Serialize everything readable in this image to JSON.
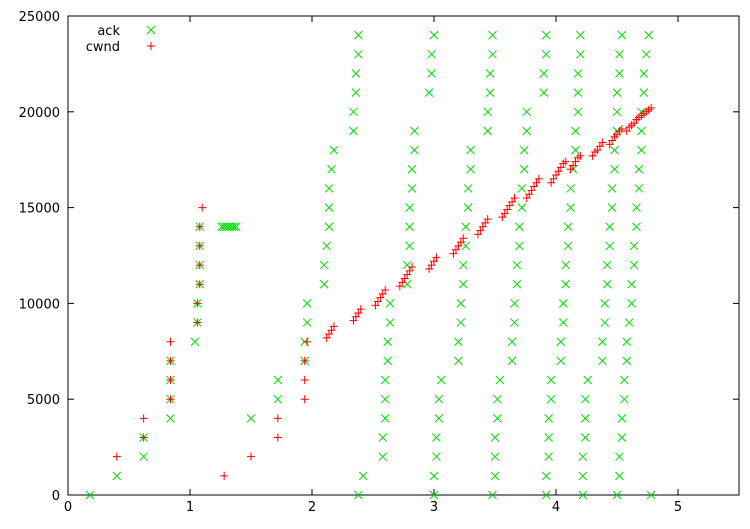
{
  "chart_data": {
    "type": "scatter",
    "title": "",
    "xlabel": "",
    "ylabel": "",
    "xlim": [
      0,
      5.5
    ],
    "ylim": [
      0,
      25000
    ],
    "x_ticks": [
      0,
      1,
      2,
      3,
      4,
      5
    ],
    "y_ticks": [
      0,
      5000,
      10000,
      15000,
      20000,
      25000
    ],
    "grid": false,
    "legend_position": "top-left",
    "series": [
      {
        "name": "ack",
        "marker": "x",
        "color": "#00dd00",
        "points": [
          [
            0.18,
            0
          ],
          [
            0.4,
            1000
          ],
          [
            0.62,
            2000
          ],
          [
            0.62,
            3000
          ],
          [
            0.84,
            4000
          ],
          [
            0.84,
            5000
          ],
          [
            0.84,
            6000
          ],
          [
            0.84,
            7000
          ],
          [
            1.04,
            8000
          ],
          [
            1.06,
            9000
          ],
          [
            1.06,
            10000
          ],
          [
            1.08,
            11000
          ],
          [
            1.08,
            12000
          ],
          [
            1.08,
            13000
          ],
          [
            1.08,
            14000
          ],
          [
            1.26,
            14000
          ],
          [
            1.28,
            14000
          ],
          [
            1.3,
            14000
          ],
          [
            1.32,
            14000
          ],
          [
            1.34,
            14000
          ],
          [
            1.36,
            14000
          ],
          [
            1.38,
            14000
          ],
          [
            1.5,
            4000
          ],
          [
            1.72,
            5000
          ],
          [
            1.72,
            6000
          ],
          [
            1.94,
            7000
          ],
          [
            1.94,
            8000
          ],
          [
            1.96,
            9000
          ],
          [
            1.96,
            10000
          ],
          [
            2.1,
            11000
          ],
          [
            2.1,
            12000
          ],
          [
            2.12,
            13000
          ],
          [
            2.14,
            14000
          ],
          [
            2.14,
            15000
          ],
          [
            2.14,
            16000
          ],
          [
            2.16,
            17000
          ],
          [
            2.18,
            18000
          ],
          [
            2.34,
            19000
          ],
          [
            2.34,
            20000
          ],
          [
            2.36,
            21000
          ],
          [
            2.36,
            22000
          ],
          [
            2.38,
            23000
          ],
          [
            2.38,
            24000
          ],
          [
            2.38,
            0
          ],
          [
            2.42,
            1000
          ],
          [
            2.58,
            2000
          ],
          [
            2.58,
            3000
          ],
          [
            2.6,
            4000
          ],
          [
            2.6,
            5000
          ],
          [
            2.6,
            6000
          ],
          [
            2.62,
            7000
          ],
          [
            2.62,
            8000
          ],
          [
            2.64,
            9000
          ],
          [
            2.64,
            10000
          ],
          [
            2.78,
            11000
          ],
          [
            2.78,
            12000
          ],
          [
            2.8,
            13000
          ],
          [
            2.8,
            14000
          ],
          [
            2.8,
            15000
          ],
          [
            2.82,
            16000
          ],
          [
            2.82,
            17000
          ],
          [
            2.84,
            18000
          ],
          [
            2.84,
            19000
          ],
          [
            2.96,
            21000
          ],
          [
            2.98,
            22000
          ],
          [
            2.98,
            23000
          ],
          [
            3.0,
            24000
          ],
          [
            3.0,
            0
          ],
          [
            3.0,
            1000
          ],
          [
            3.02,
            2000
          ],
          [
            3.02,
            3000
          ],
          [
            3.04,
            4000
          ],
          [
            3.04,
            5000
          ],
          [
            3.06,
            6000
          ],
          [
            3.2,
            7000
          ],
          [
            3.2,
            8000
          ],
          [
            3.22,
            9000
          ],
          [
            3.22,
            10000
          ],
          [
            3.24,
            11000
          ],
          [
            3.24,
            12000
          ],
          [
            3.26,
            13000
          ],
          [
            3.26,
            14000
          ],
          [
            3.28,
            15000
          ],
          [
            3.28,
            16000
          ],
          [
            3.3,
            17000
          ],
          [
            3.3,
            18000
          ],
          [
            3.44,
            19000
          ],
          [
            3.44,
            20000
          ],
          [
            3.46,
            21000
          ],
          [
            3.46,
            22000
          ],
          [
            3.48,
            23000
          ],
          [
            3.48,
            24000
          ],
          [
            3.48,
            0
          ],
          [
            3.5,
            1000
          ],
          [
            3.5,
            2000
          ],
          [
            3.5,
            3000
          ],
          [
            3.52,
            4000
          ],
          [
            3.52,
            5000
          ],
          [
            3.54,
            6000
          ],
          [
            3.64,
            7000
          ],
          [
            3.64,
            8000
          ],
          [
            3.66,
            9000
          ],
          [
            3.66,
            10000
          ],
          [
            3.68,
            11000
          ],
          [
            3.68,
            12000
          ],
          [
            3.7,
            13000
          ],
          [
            3.7,
            14000
          ],
          [
            3.72,
            15000
          ],
          [
            3.72,
            16000
          ],
          [
            3.74,
            17000
          ],
          [
            3.74,
            18000
          ],
          [
            3.76,
            19000
          ],
          [
            3.76,
            20000
          ],
          [
            3.9,
            21000
          ],
          [
            3.9,
            22000
          ],
          [
            3.92,
            23000
          ],
          [
            3.92,
            24000
          ],
          [
            3.92,
            0
          ],
          [
            3.92,
            1000
          ],
          [
            3.94,
            2000
          ],
          [
            3.94,
            3000
          ],
          [
            3.94,
            4000
          ],
          [
            3.96,
            5000
          ],
          [
            3.96,
            6000
          ],
          [
            4.04,
            7000
          ],
          [
            4.04,
            8000
          ],
          [
            4.06,
            9000
          ],
          [
            4.06,
            10000
          ],
          [
            4.08,
            11000
          ],
          [
            4.08,
            12000
          ],
          [
            4.1,
            13000
          ],
          [
            4.1,
            14000
          ],
          [
            4.12,
            15000
          ],
          [
            4.12,
            16000
          ],
          [
            4.14,
            17000
          ],
          [
            4.16,
            18000
          ],
          [
            4.16,
            19000
          ],
          [
            4.18,
            20000
          ],
          [
            4.18,
            21000
          ],
          [
            4.18,
            22000
          ],
          [
            4.2,
            23000
          ],
          [
            4.2,
            24000
          ],
          [
            4.22,
            0
          ],
          [
            4.22,
            1000
          ],
          [
            4.22,
            2000
          ],
          [
            4.24,
            3000
          ],
          [
            4.24,
            4000
          ],
          [
            4.24,
            5000
          ],
          [
            4.26,
            6000
          ],
          [
            4.38,
            7000
          ],
          [
            4.38,
            8000
          ],
          [
            4.4,
            9000
          ],
          [
            4.4,
            10000
          ],
          [
            4.42,
            11000
          ],
          [
            4.42,
            12000
          ],
          [
            4.44,
            13000
          ],
          [
            4.44,
            14000
          ],
          [
            4.46,
            15000
          ],
          [
            4.46,
            16000
          ],
          [
            4.48,
            17000
          ],
          [
            4.48,
            18000
          ],
          [
            4.5,
            19000
          ],
          [
            4.5,
            20000
          ],
          [
            4.5,
            21000
          ],
          [
            4.52,
            22000
          ],
          [
            4.52,
            23000
          ],
          [
            4.54,
            24000
          ],
          [
            4.5,
            0
          ],
          [
            4.52,
            1000
          ],
          [
            4.52,
            2000
          ],
          [
            4.54,
            3000
          ],
          [
            4.54,
            4000
          ],
          [
            4.56,
            5000
          ],
          [
            4.56,
            6000
          ],
          [
            4.58,
            7000
          ],
          [
            4.58,
            8000
          ],
          [
            4.6,
            9000
          ],
          [
            4.62,
            10000
          ],
          [
            4.62,
            11000
          ],
          [
            4.64,
            12000
          ],
          [
            4.64,
            13000
          ],
          [
            4.66,
            14000
          ],
          [
            4.66,
            15000
          ],
          [
            4.68,
            16000
          ],
          [
            4.68,
            17000
          ],
          [
            4.7,
            18000
          ],
          [
            4.7,
            19000
          ],
          [
            4.7,
            20000
          ],
          [
            4.72,
            21000
          ],
          [
            4.72,
            22000
          ],
          [
            4.74,
            23000
          ],
          [
            4.76,
            24000
          ],
          [
            4.78,
            0
          ]
        ]
      },
      {
        "name": "cwnd",
        "marker": "+",
        "color": "#ff0000",
        "points": [
          [
            0.4,
            2000
          ],
          [
            0.62,
            3000
          ],
          [
            0.62,
            4000
          ],
          [
            0.84,
            5000
          ],
          [
            0.84,
            6000
          ],
          [
            0.84,
            7000
          ],
          [
            0.84,
            8000
          ],
          [
            1.06,
            9000
          ],
          [
            1.06,
            10000
          ],
          [
            1.08,
            11000
          ],
          [
            1.08,
            12000
          ],
          [
            1.08,
            13000
          ],
          [
            1.08,
            14000
          ],
          [
            1.1,
            15000
          ],
          [
            1.28,
            1000
          ],
          [
            1.5,
            2000
          ],
          [
            1.72,
            3000
          ],
          [
            1.72,
            4000
          ],
          [
            1.94,
            5000
          ],
          [
            1.94,
            6000
          ],
          [
            1.94,
            7000
          ],
          [
            1.96,
            8000
          ],
          [
            2.12,
            8200
          ],
          [
            2.14,
            8400
          ],
          [
            2.16,
            8600
          ],
          [
            2.18,
            8800
          ],
          [
            2.34,
            9100
          ],
          [
            2.36,
            9300
          ],
          [
            2.38,
            9500
          ],
          [
            2.4,
            9700
          ],
          [
            2.52,
            9900
          ],
          [
            2.54,
            10100
          ],
          [
            2.56,
            10300
          ],
          [
            2.58,
            10500
          ],
          [
            2.6,
            10700
          ],
          [
            2.72,
            10900
          ],
          [
            2.74,
            11100
          ],
          [
            2.76,
            11300
          ],
          [
            2.78,
            11500
          ],
          [
            2.8,
            11700
          ],
          [
            2.82,
            11900
          ],
          [
            2.96,
            11800
          ],
          [
            2.98,
            12000
          ],
          [
            3.0,
            12200
          ],
          [
            3.02,
            12400
          ],
          [
            3.16,
            12600
          ],
          [
            3.18,
            12800
          ],
          [
            3.2,
            13000
          ],
          [
            3.22,
            13200
          ],
          [
            3.24,
            13400
          ],
          [
            3.36,
            13600
          ],
          [
            3.38,
            13800
          ],
          [
            3.4,
            14000
          ],
          [
            3.42,
            14200
          ],
          [
            3.44,
            14400
          ],
          [
            3.56,
            14500
          ],
          [
            3.58,
            14700
          ],
          [
            3.6,
            14900
          ],
          [
            3.62,
            15100
          ],
          [
            3.64,
            15300
          ],
          [
            3.66,
            15500
          ],
          [
            3.76,
            15500
          ],
          [
            3.78,
            15700
          ],
          [
            3.8,
            15900
          ],
          [
            3.82,
            16100
          ],
          [
            3.84,
            16300
          ],
          [
            3.86,
            16500
          ],
          [
            3.96,
            16300
          ],
          [
            3.98,
            16500
          ],
          [
            4.0,
            16700
          ],
          [
            4.02,
            16900
          ],
          [
            4.04,
            17100
          ],
          [
            4.06,
            17300
          ],
          [
            4.08,
            17400
          ],
          [
            4.12,
            17000
          ],
          [
            4.14,
            17200
          ],
          [
            4.16,
            17400
          ],
          [
            4.18,
            17600
          ],
          [
            4.2,
            17700
          ],
          [
            4.3,
            17700
          ],
          [
            4.32,
            17900
          ],
          [
            4.34,
            18000
          ],
          [
            4.36,
            18200
          ],
          [
            4.38,
            18400
          ],
          [
            4.44,
            18300
          ],
          [
            4.46,
            18500
          ],
          [
            4.48,
            18700
          ],
          [
            4.5,
            18800
          ],
          [
            4.52,
            19000
          ],
          [
            4.54,
            19100
          ],
          [
            4.58,
            19000
          ],
          [
            4.6,
            19200
          ],
          [
            4.62,
            19300
          ],
          [
            4.64,
            19400
          ],
          [
            4.66,
            19600
          ],
          [
            4.68,
            19700
          ],
          [
            4.7,
            19800
          ],
          [
            4.72,
            19900
          ],
          [
            4.74,
            20000
          ],
          [
            4.76,
            20100
          ],
          [
            4.78,
            20200
          ]
        ]
      }
    ]
  }
}
